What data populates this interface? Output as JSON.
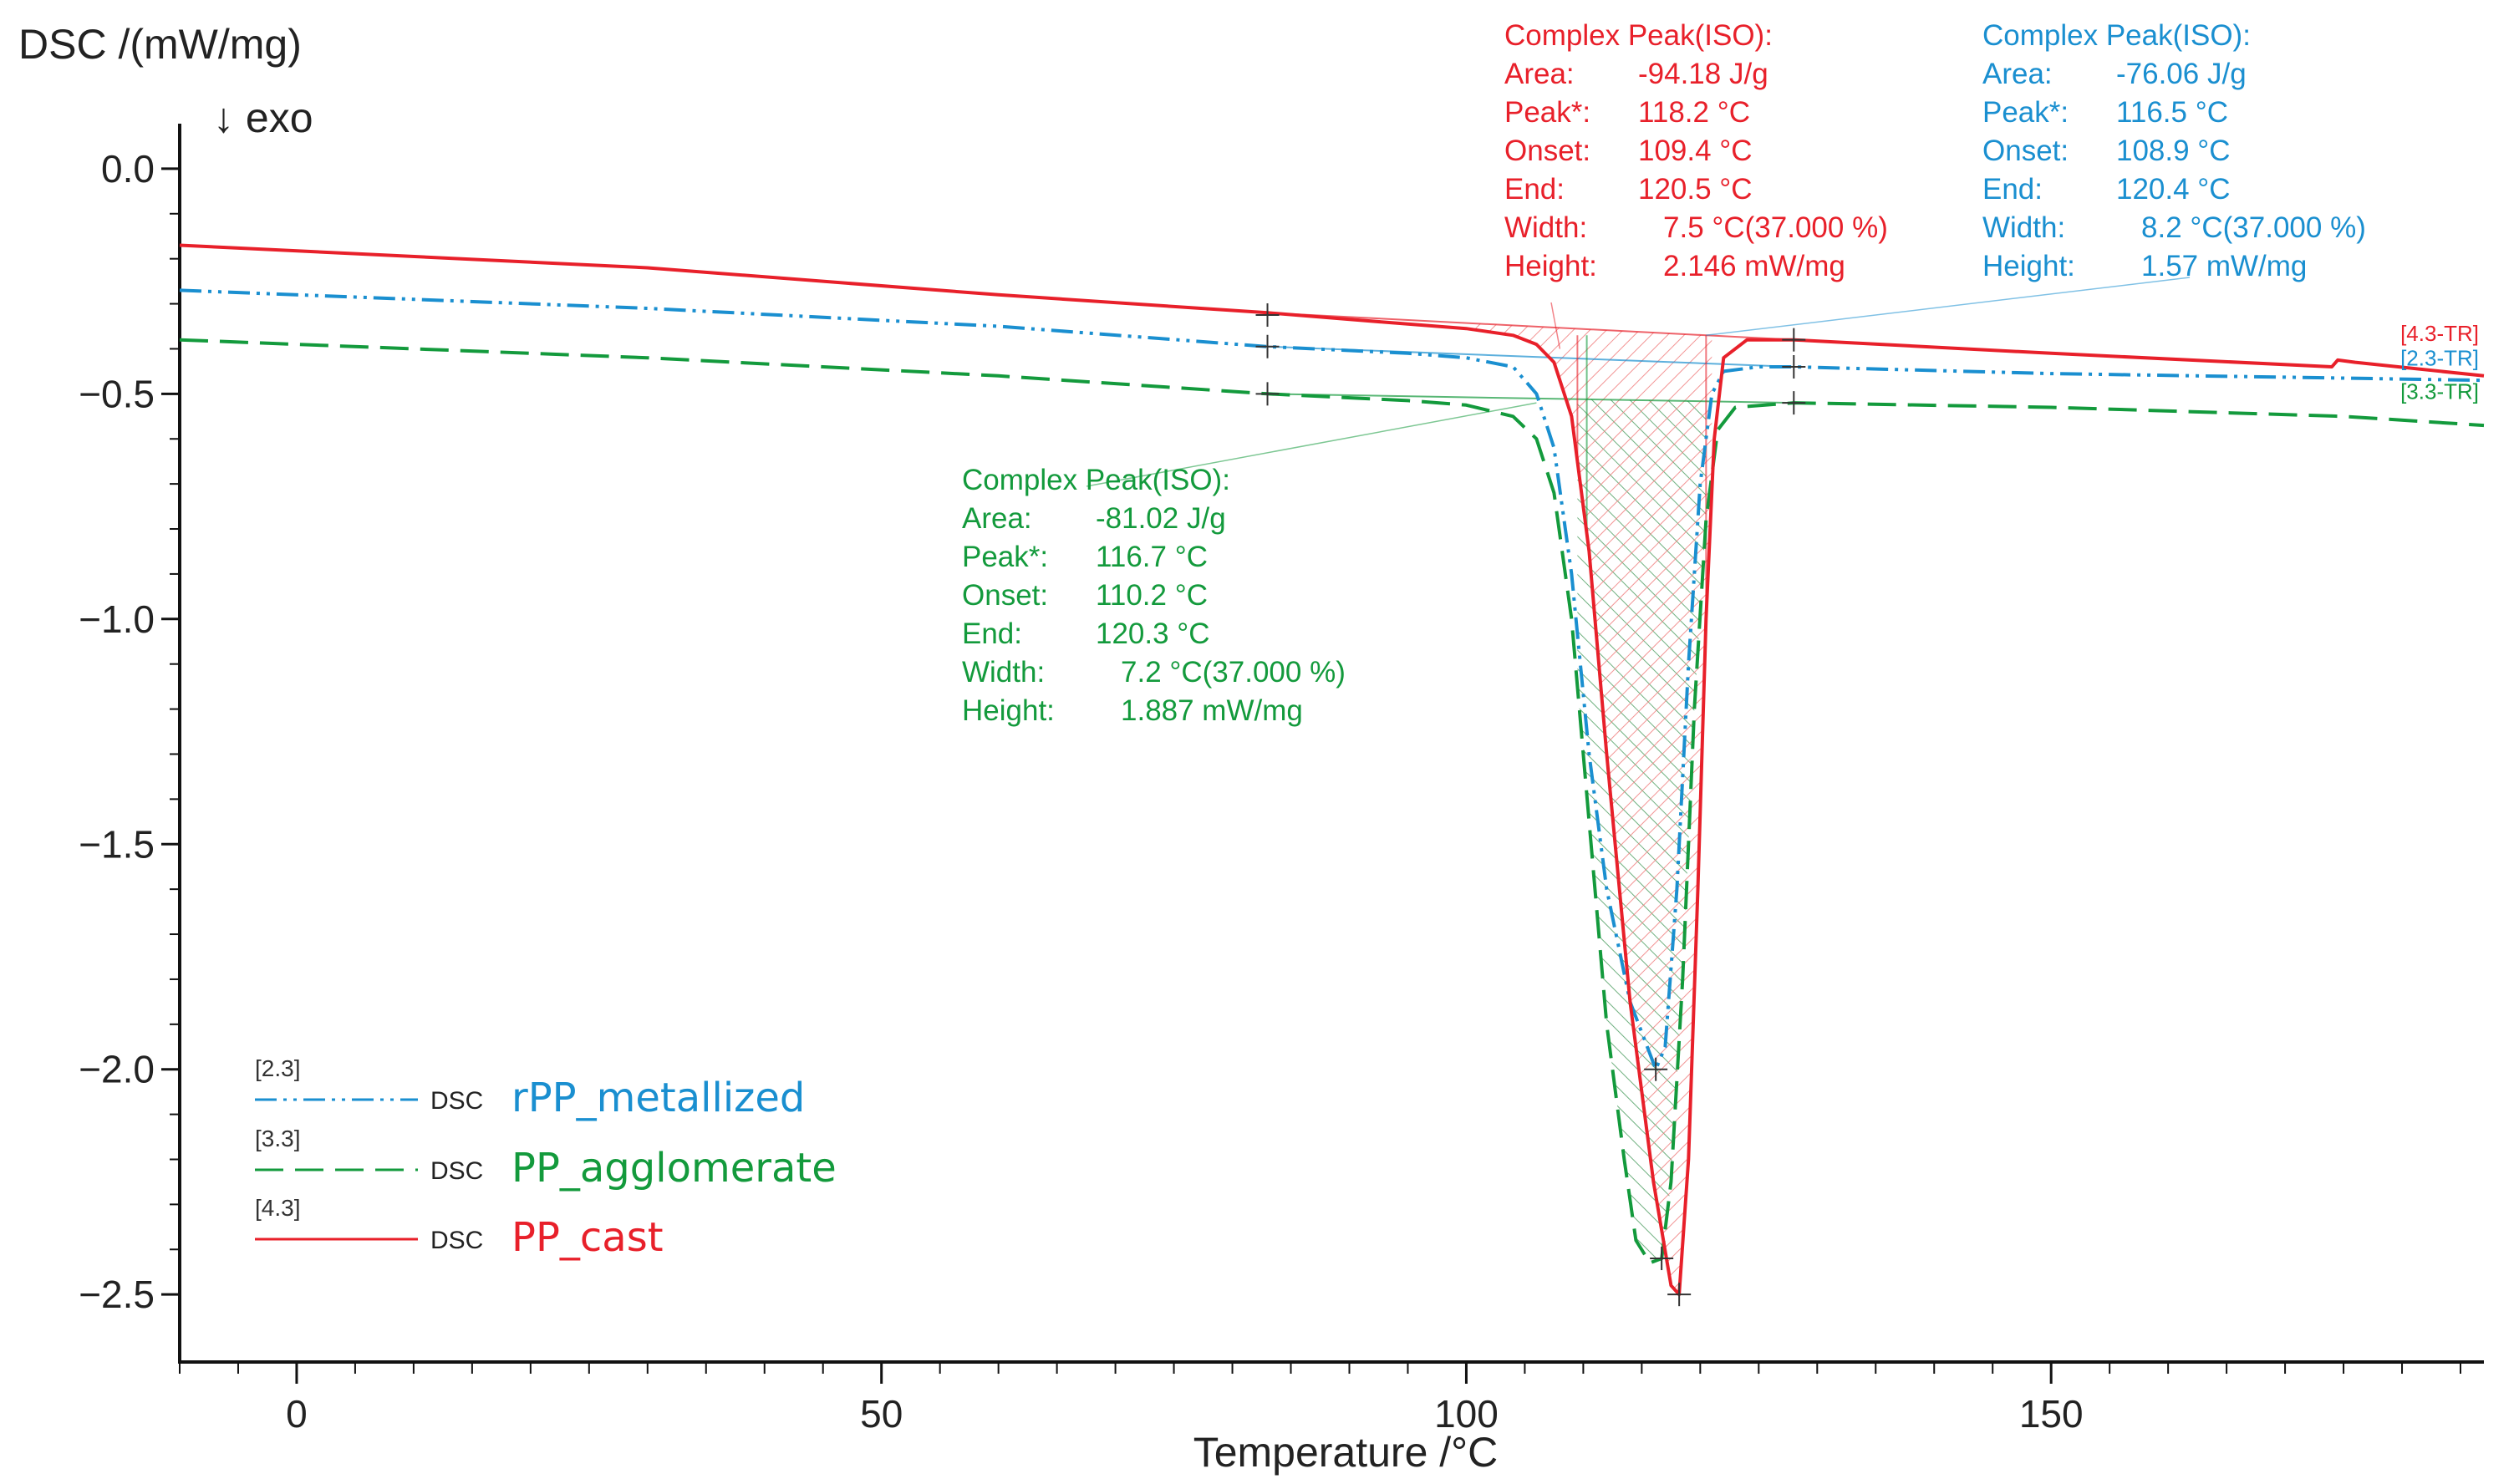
{
  "chart_data": {
    "type": "line",
    "y_title": "DSC /(mW/mg)",
    "y_subtitle": "↓ exo",
    "xlabel": "Temperature /°C",
    "xlim": [
      -10,
      187
    ],
    "ylim": [
      -2.65,
      0.1
    ],
    "x_ticks": [
      0,
      50,
      100,
      150
    ],
    "x_tick_labels": [
      "0",
      "50",
      "100",
      "150"
    ],
    "y_ticks": [
      0.0,
      -0.5,
      -1.0,
      -1.5,
      -2.0,
      -2.5
    ],
    "y_tick_labels": [
      "0.0",
      "−0.5",
      "−1.0",
      "−1.5",
      "−2.0",
      "−2.5"
    ],
    "grid": false,
    "legend_position": "bottom-left",
    "series": [
      {
        "name": "rPP_metallized",
        "tag": "[2.3]",
        "prefix": "DSC",
        "end_label": "[2.3-TR]",
        "color": "#1a8fd0",
        "dash": "dash-dot-dot",
        "points": [
          [
            -10,
            -0.27
          ],
          [
            30,
            -0.31
          ],
          [
            60,
            -0.35
          ],
          [
            83,
            -0.395
          ],
          [
            95,
            -0.41
          ],
          [
            100,
            -0.42
          ],
          [
            104,
            -0.44
          ],
          [
            106,
            -0.5
          ],
          [
            107.5,
            -0.62
          ],
          [
            109,
            -0.9
          ],
          [
            110.5,
            -1.3
          ],
          [
            112,
            -1.6
          ],
          [
            114,
            -1.85
          ],
          [
            116.2,
            -2.0
          ],
          [
            117,
            -1.95
          ],
          [
            118,
            -1.6
          ],
          [
            119,
            -1.1
          ],
          [
            120,
            -0.7
          ],
          [
            121,
            -0.5
          ],
          [
            122,
            -0.45
          ],
          [
            125,
            -0.44
          ],
          [
            128,
            -0.44
          ],
          [
            150,
            -0.455
          ],
          [
            175,
            -0.465
          ],
          [
            187,
            -0.47
          ]
        ]
      },
      {
        "name": "PP_agglomerate",
        "tag": "[3.3]",
        "prefix": "DSC",
        "end_label": "[3.3-TR]",
        "color": "#139a3c",
        "dash": "dash",
        "points": [
          [
            -10,
            -0.38
          ],
          [
            30,
            -0.42
          ],
          [
            60,
            -0.46
          ],
          [
            83,
            -0.5
          ],
          [
            95,
            -0.515
          ],
          [
            100,
            -0.525
          ],
          [
            104,
            -0.55
          ],
          [
            106,
            -0.6
          ],
          [
            107.5,
            -0.72
          ],
          [
            109,
            -1.0
          ],
          [
            110.5,
            -1.45
          ],
          [
            112,
            -1.9
          ],
          [
            113.5,
            -2.2
          ],
          [
            114.5,
            -2.38
          ],
          [
            115.7,
            -2.43
          ],
          [
            116.7,
            -2.42
          ],
          [
            117.5,
            -2.25
          ],
          [
            118.5,
            -1.8
          ],
          [
            119.5,
            -1.2
          ],
          [
            120.5,
            -0.78
          ],
          [
            121.5,
            -0.58
          ],
          [
            123,
            -0.53
          ],
          [
            128,
            -0.52
          ],
          [
            150,
            -0.53
          ],
          [
            175,
            -0.55
          ],
          [
            187,
            -0.57
          ]
        ]
      },
      {
        "name": "PP_cast",
        "tag": "[4.3]",
        "prefix": "DSC",
        "end_label": "[4.3-TR]",
        "color": "#e8202a",
        "dash": "solid",
        "points": [
          [
            -10,
            -0.17
          ],
          [
            30,
            -0.22
          ],
          [
            60,
            -0.28
          ],
          [
            83,
            -0.32
          ],
          [
            95,
            -0.345
          ],
          [
            100,
            -0.355
          ],
          [
            104,
            -0.37
          ],
          [
            106,
            -0.39
          ],
          [
            107.5,
            -0.43
          ],
          [
            109,
            -0.55
          ],
          [
            110.5,
            -0.85
          ],
          [
            112,
            -1.3
          ],
          [
            114,
            -1.85
          ],
          [
            116,
            -2.25
          ],
          [
            117.5,
            -2.48
          ],
          [
            118.2,
            -2.5
          ],
          [
            119,
            -2.2
          ],
          [
            119.8,
            -1.6
          ],
          [
            120.5,
            -1.0
          ],
          [
            121.2,
            -0.6
          ],
          [
            122,
            -0.42
          ],
          [
            124,
            -0.38
          ],
          [
            128,
            -0.38
          ],
          [
            150,
            -0.41
          ],
          [
            174,
            -0.44
          ],
          [
            174.5,
            -0.425
          ],
          [
            176,
            -0.43
          ],
          [
            187,
            -0.46
          ]
        ]
      }
    ],
    "annotations": [
      {
        "series": "PP_cast",
        "color": "#e8202a",
        "title": "Complex Peak(ISO):",
        "rows": [
          [
            "Area:",
            "-94.18 J/g"
          ],
          [
            "Peak*:",
            "118.2 °C"
          ],
          [
            "Onset:",
            "109.4 °C"
          ],
          [
            "End:",
            "120.5 °C"
          ],
          [
            "Width:",
            "7.5 °C(37.000 %)"
          ],
          [
            "Height:",
            "2.146 mW/mg"
          ]
        ],
        "leader_to": [
          108,
          -0.4
        ]
      },
      {
        "series": "rPP_metallized",
        "color": "#1a8fd0",
        "title": "Complex Peak(ISO):",
        "rows": [
          [
            "Area:",
            "-76.06 J/g"
          ],
          [
            "Peak*:",
            "116.5 °C"
          ],
          [
            "Onset:",
            "108.9 °C"
          ],
          [
            "End:",
            "120.4 °C"
          ],
          [
            "Width:",
            "8.2 °C(37.000 %)"
          ],
          [
            "Height:",
            "1.57 mW/mg"
          ]
        ],
        "leader_to": [
          120.5,
          -0.37
        ]
      },
      {
        "series": "PP_agglomerate",
        "color": "#139a3c",
        "title": "Complex Peak(ISO):",
        "rows": [
          [
            "Area:",
            "-81.02 J/g"
          ],
          [
            "Peak*:",
            "116.7 °C"
          ],
          [
            "Onset:",
            "110.2 °C"
          ],
          [
            "End:",
            "120.3 °C"
          ],
          [
            "Width:",
            "7.2 °C(37.000 %)"
          ],
          [
            "Height:",
            "1.887 mW/mg"
          ]
        ],
        "leader_to": [
          106,
          -0.52
        ]
      }
    ],
    "integration": {
      "cast_limits": [
        83,
        128
      ],
      "shaded_range": [
        109.5,
        120.5
      ],
      "markers": [
        [
          83,
          -0.325
        ],
        [
          83,
          -0.395
        ],
        [
          83,
          -0.5
        ],
        [
          128,
          -0.38
        ],
        [
          128,
          -0.44
        ],
        [
          128,
          -0.52
        ],
        [
          118.2,
          -2.5
        ],
        [
          116.2,
          -2.0
        ],
        [
          116.7,
          -2.42
        ]
      ]
    }
  }
}
